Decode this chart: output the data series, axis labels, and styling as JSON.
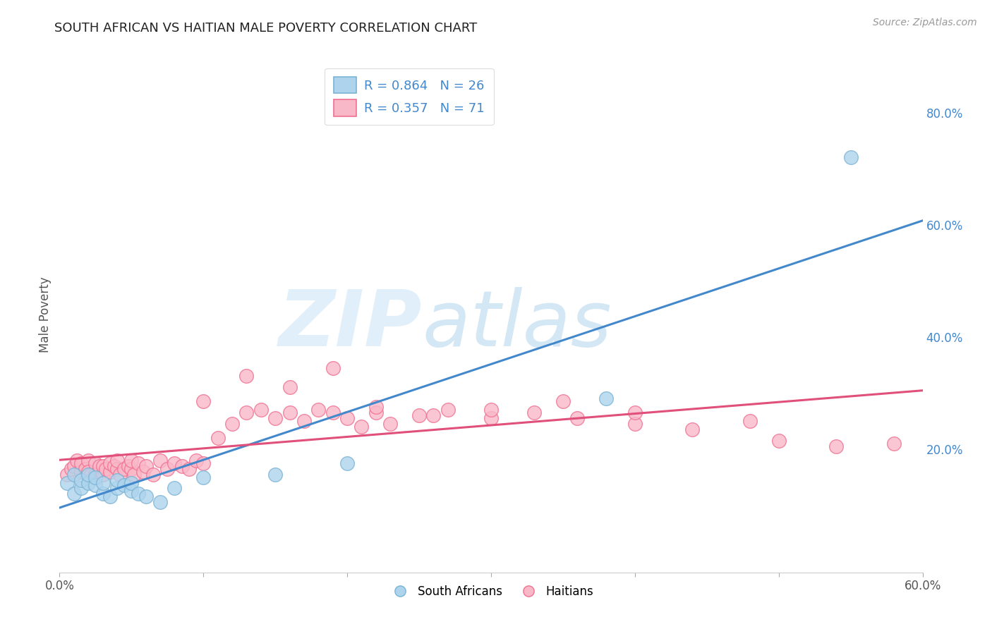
{
  "title": "SOUTH AFRICAN VS HAITIAN MALE POVERTY CORRELATION CHART",
  "source": "Source: ZipAtlas.com",
  "ylabel": "Male Poverty",
  "ytick_labels": [
    "20.0%",
    "40.0%",
    "60.0%",
    "80.0%"
  ],
  "ytick_values": [
    0.2,
    0.4,
    0.6,
    0.8
  ],
  "xlim": [
    0.0,
    0.6
  ],
  "ylim": [
    -0.02,
    0.9
  ],
  "legend_r1": "R = 0.864",
  "legend_n1": "N = 26",
  "legend_r2": "R = 0.357",
  "legend_n2": "N = 71",
  "blue_scatter_face": "#aed4ed",
  "blue_scatter_edge": "#7ab3d4",
  "pink_scatter_face": "#f9b8c8",
  "pink_scatter_edge": "#f07090",
  "line_blue": "#4488cc",
  "line_pink": "#e0507a",
  "background_color": "#ffffff",
  "grid_color": "#cccccc",
  "title_color": "#222222",
  "axis_label_color": "#555555",
  "right_tick_color": "#4488cc",
  "sa_x": [
    0.005,
    0.01,
    0.01,
    0.015,
    0.015,
    0.02,
    0.02,
    0.025,
    0.025,
    0.03,
    0.03,
    0.035,
    0.04,
    0.04,
    0.045,
    0.05,
    0.05,
    0.055,
    0.06,
    0.07,
    0.08,
    0.1,
    0.15,
    0.2,
    0.38,
    0.55
  ],
  "sa_y": [
    0.14,
    0.12,
    0.155,
    0.13,
    0.145,
    0.14,
    0.155,
    0.135,
    0.15,
    0.12,
    0.14,
    0.115,
    0.13,
    0.145,
    0.135,
    0.125,
    0.14,
    0.12,
    0.115,
    0.105,
    0.13,
    0.15,
    0.155,
    0.175,
    0.29,
    0.72
  ],
  "ht_x": [
    0.005,
    0.008,
    0.01,
    0.012,
    0.015,
    0.015,
    0.018,
    0.02,
    0.02,
    0.022,
    0.025,
    0.025,
    0.028,
    0.03,
    0.03,
    0.032,
    0.035,
    0.035,
    0.038,
    0.04,
    0.04,
    0.042,
    0.045,
    0.048,
    0.05,
    0.05,
    0.052,
    0.055,
    0.058,
    0.06,
    0.065,
    0.07,
    0.075,
    0.08,
    0.085,
    0.09,
    0.095,
    0.1,
    0.11,
    0.12,
    0.13,
    0.14,
    0.15,
    0.16,
    0.17,
    0.18,
    0.19,
    0.2,
    0.21,
    0.22,
    0.23,
    0.25,
    0.27,
    0.3,
    0.33,
    0.36,
    0.4,
    0.44,
    0.5,
    0.54,
    0.58,
    0.1,
    0.13,
    0.16,
    0.19,
    0.22,
    0.26,
    0.3,
    0.35,
    0.4,
    0.48
  ],
  "ht_y": [
    0.155,
    0.165,
    0.17,
    0.18,
    0.16,
    0.175,
    0.165,
    0.18,
    0.16,
    0.155,
    0.175,
    0.155,
    0.17,
    0.155,
    0.17,
    0.165,
    0.16,
    0.175,
    0.17,
    0.165,
    0.18,
    0.155,
    0.165,
    0.17,
    0.165,
    0.18,
    0.155,
    0.175,
    0.16,
    0.17,
    0.155,
    0.18,
    0.165,
    0.175,
    0.17,
    0.165,
    0.18,
    0.175,
    0.22,
    0.245,
    0.265,
    0.27,
    0.255,
    0.265,
    0.25,
    0.27,
    0.265,
    0.255,
    0.24,
    0.265,
    0.245,
    0.26,
    0.27,
    0.255,
    0.265,
    0.255,
    0.245,
    0.235,
    0.215,
    0.205,
    0.21,
    0.285,
    0.33,
    0.31,
    0.345,
    0.275,
    0.26,
    0.27,
    0.285,
    0.265,
    0.25
  ]
}
